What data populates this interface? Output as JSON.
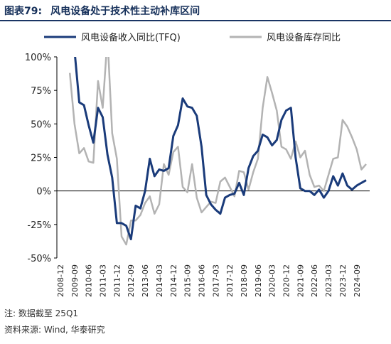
{
  "header": {
    "figure_number": "图表79:",
    "title": "风电设备处于技术性主动补库区间"
  },
  "footer": {
    "note": "注: 数据截至 25Q1",
    "source": "资料来源: Wind, 华泰研究"
  },
  "chart_data": {
    "type": "line",
    "title": "",
    "xlabel": "",
    "ylabel": "",
    "ylim": [
      -50,
      100
    ],
    "y_ticks": [
      "100%",
      "75%",
      "50%",
      "25%",
      "0%",
      "-25%",
      "-50%"
    ],
    "x_tick_labels": [
      "2008-12",
      "2009-09",
      "2010-06",
      "2011-03",
      "2011-12",
      "2012-09",
      "2013-06",
      "2014-03",
      "2014-12",
      "2015-09",
      "2016-06",
      "2017-03",
      "2017-12",
      "2018-09",
      "2019-06",
      "2020-03",
      "2020-12",
      "2021-09",
      "2022-06",
      "2023-03",
      "2023-12",
      "2024-09"
    ],
    "x": [
      "2008-12",
      "2009-03",
      "2009-06",
      "2009-09",
      "2009-12",
      "2010-03",
      "2010-06",
      "2010-09",
      "2010-12",
      "2011-03",
      "2011-06",
      "2011-09",
      "2011-12",
      "2012-03",
      "2012-06",
      "2012-09",
      "2012-12",
      "2013-03",
      "2013-06",
      "2013-09",
      "2013-12",
      "2014-03",
      "2014-06",
      "2014-09",
      "2014-12",
      "2015-03",
      "2015-06",
      "2015-09",
      "2015-12",
      "2016-03",
      "2016-06",
      "2016-09",
      "2016-12",
      "2017-03",
      "2017-06",
      "2017-09",
      "2017-12",
      "2018-03",
      "2018-06",
      "2018-09",
      "2018-12",
      "2019-03",
      "2019-06",
      "2019-09",
      "2019-12",
      "2020-03",
      "2020-06",
      "2020-09",
      "2020-12",
      "2021-03",
      "2021-06",
      "2021-09",
      "2021-12",
      "2022-03",
      "2022-06",
      "2022-09",
      "2022-12",
      "2023-03",
      "2023-06",
      "2023-09",
      "2023-12",
      "2024-03",
      "2024-06",
      "2024-09",
      "2024-12",
      "2025-03"
    ],
    "grid": false,
    "legend": "top",
    "series": [
      {
        "name": "风电设备收入同比(TFQ)",
        "color": "#1a3b7a",
        "values": [
          null,
          null,
          null,
          105,
          66,
          64,
          49,
          36,
          62,
          55,
          27,
          10,
          -24,
          -24,
          -26,
          -36,
          -11,
          -13,
          0,
          24,
          11,
          16,
          15,
          17,
          41,
          49,
          69,
          63,
          62,
          56,
          33,
          -3,
          -10,
          -14,
          -17,
          -5,
          -3,
          -2,
          6,
          -3,
          17,
          26,
          30,
          42,
          40,
          34,
          38,
          53,
          60,
          62,
          25,
          2,
          0,
          0,
          -3,
          1,
          -5,
          0,
          11,
          4,
          13,
          4,
          1,
          4,
          6,
          8
        ]
      },
      {
        "name": "风电设备库存同比",
        "color": "#b3b3b3",
        "values": [
          null,
          null,
          88,
          50,
          28,
          32,
          22,
          21,
          82,
          62,
          115,
          43,
          24,
          -34,
          -40,
          -22,
          -22,
          -18,
          -9,
          -4,
          -17,
          -10,
          20,
          12,
          29,
          33,
          3,
          -1,
          20,
          -5,
          -16,
          -12,
          -8,
          -9,
          7,
          10,
          3,
          -4,
          15,
          14,
          1,
          14,
          24,
          62,
          85,
          73,
          60,
          33,
          31,
          24,
          37,
          25,
          30,
          12,
          3,
          4,
          0,
          12,
          24,
          25,
          53,
          48,
          40,
          31,
          16,
          20
        ]
      }
    ]
  }
}
